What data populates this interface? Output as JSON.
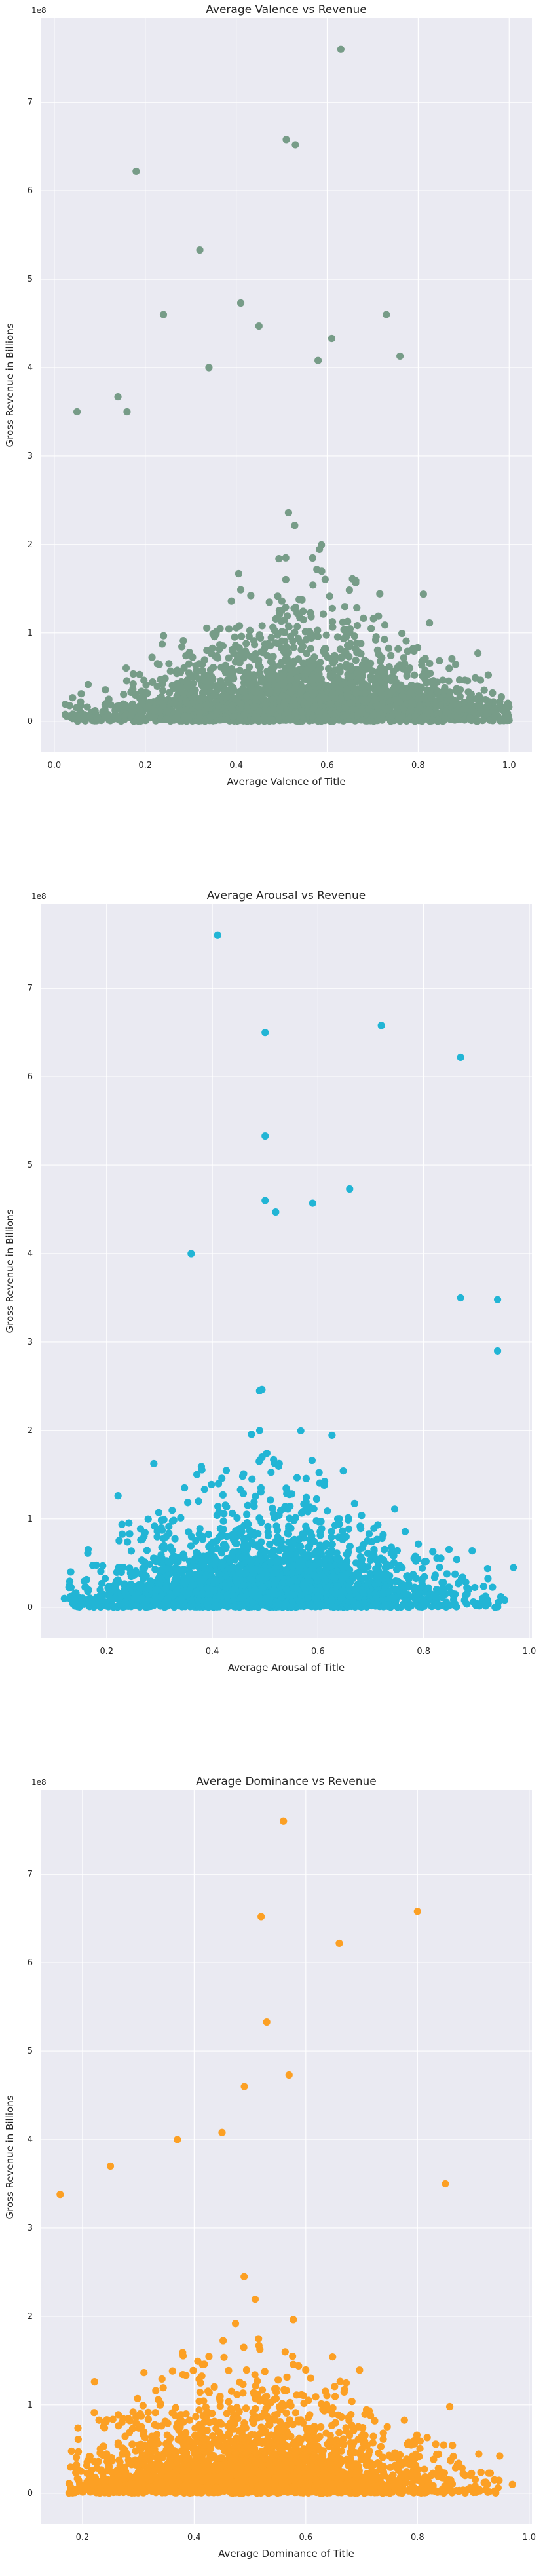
{
  "chart_data": [
    {
      "type": "scatter",
      "title": "Average Valence vs Revenue",
      "xlabel": "Average Valence of Title",
      "ylabel": "Gross Revenue in Billions",
      "y_multiplier": "1e8",
      "xlim": [
        -0.03,
        1.05
      ],
      "ylim": [
        -0.35,
        7.95
      ],
      "xticks": [
        "0.0",
        "0.2",
        "0.4",
        "0.6",
        "0.8",
        "1.0"
      ],
      "yticks": [
        "0",
        "1",
        "2",
        "3",
        "4",
        "5",
        "6",
        "7"
      ],
      "grid": true,
      "color": "#779c88",
      "background": "#eaeaf2",
      "notable_points": [
        {
          "x": 0.63,
          "y": 7.6
        },
        {
          "x": 0.51,
          "y": 6.58
        },
        {
          "x": 0.53,
          "y": 6.52
        },
        {
          "x": 0.18,
          "y": 6.22
        },
        {
          "x": 0.32,
          "y": 5.33
        },
        {
          "x": 0.41,
          "y": 4.73
        },
        {
          "x": 0.24,
          "y": 4.6
        },
        {
          "x": 0.73,
          "y": 4.6
        },
        {
          "x": 0.45,
          "y": 4.47
        },
        {
          "x": 0.61,
          "y": 4.33
        },
        {
          "x": 0.76,
          "y": 4.13
        },
        {
          "x": 0.58,
          "y": 4.08
        },
        {
          "x": 0.34,
          "y": 4.0
        },
        {
          "x": 0.14,
          "y": 3.67
        },
        {
          "x": 0.05,
          "y": 3.5
        },
        {
          "x": 0.16,
          "y": 3.5
        },
        {
          "x": 0.99,
          "y": 0.15
        }
      ]
    },
    {
      "type": "scatter",
      "title": "Average Arousal vs Revenue",
      "xlabel": "Average Arousal of Title",
      "ylabel": "Gross Revenue in Billions",
      "y_multiplier": "1e8",
      "xlim": [
        0.075,
        1.005
      ],
      "ylim": [
        -0.35,
        7.95
      ],
      "xticks": [
        "0.2",
        "0.4",
        "0.6",
        "0.8",
        "1.0"
      ],
      "yticks": [
        "0",
        "1",
        "2",
        "3",
        "4",
        "5",
        "6",
        "7"
      ],
      "grid": true,
      "color": "#22b5d5",
      "background": "#eaeaf2",
      "notable_points": [
        {
          "x": 0.41,
          "y": 7.6
        },
        {
          "x": 0.72,
          "y": 6.58
        },
        {
          "x": 0.5,
          "y": 6.5
        },
        {
          "x": 0.87,
          "y": 6.22
        },
        {
          "x": 0.5,
          "y": 5.33
        },
        {
          "x": 0.66,
          "y": 4.73
        },
        {
          "x": 0.5,
          "y": 4.6
        },
        {
          "x": 0.59,
          "y": 4.57
        },
        {
          "x": 0.52,
          "y": 4.47
        },
        {
          "x": 0.36,
          "y": 4.0
        },
        {
          "x": 0.87,
          "y": 3.5
        },
        {
          "x": 0.94,
          "y": 3.48
        },
        {
          "x": 0.94,
          "y": 2.9
        },
        {
          "x": 0.12,
          "y": 0.1
        },
        {
          "x": 0.97,
          "y": 0.45
        }
      ]
    },
    {
      "type": "scatter",
      "title": "Average Dominance vs Revenue",
      "xlabel": "Average Dominance of Title",
      "ylabel": "Gross Revenue in Billions",
      "y_multiplier": "1e8",
      "xlim": [
        0.125,
        1.005
      ],
      "ylim": [
        -0.35,
        7.95
      ],
      "xticks": [
        "0.2",
        "0.4",
        "0.6",
        "0.8",
        "1.0"
      ],
      "yticks": [
        "0",
        "1",
        "2",
        "3",
        "4",
        "5",
        "6",
        "7"
      ],
      "grid": true,
      "color": "#fca024",
      "background": "#eaeaf2",
      "notable_points": [
        {
          "x": 0.56,
          "y": 7.6
        },
        {
          "x": 0.8,
          "y": 6.58
        },
        {
          "x": 0.52,
          "y": 6.52
        },
        {
          "x": 0.66,
          "y": 6.22
        },
        {
          "x": 0.53,
          "y": 5.33
        },
        {
          "x": 0.57,
          "y": 4.73
        },
        {
          "x": 0.49,
          "y": 4.6
        },
        {
          "x": 0.45,
          "y": 4.08
        },
        {
          "x": 0.37,
          "y": 4.0
        },
        {
          "x": 0.25,
          "y": 3.7
        },
        {
          "x": 0.16,
          "y": 3.38
        },
        {
          "x": 0.85,
          "y": 3.5
        },
        {
          "x": 0.97,
          "y": 0.1
        }
      ]
    }
  ]
}
